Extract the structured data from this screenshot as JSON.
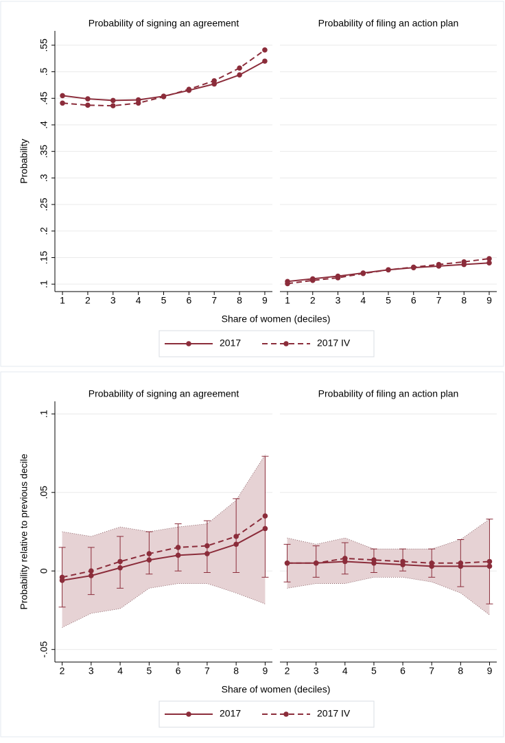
{
  "chart_data": [
    {
      "type": "line",
      "panels": [
        {
          "title": "Probability of signing an agreement"
        },
        {
          "title": "Probability of filing an action plan"
        }
      ],
      "ylabel": "Probability",
      "xlabel": "Share of women (deciles)",
      "x": [
        1,
        2,
        3,
        4,
        5,
        6,
        7,
        8,
        9
      ],
      "xlim": [
        0.7,
        9.3
      ],
      "xticks": [
        1,
        2,
        3,
        4,
        5,
        6,
        7,
        8,
        9
      ],
      "ylim": [
        0.086,
        0.577
      ],
      "yticks": [
        {
          "value": 0.1,
          "label": ".1"
        },
        {
          "value": 0.15,
          "label": ".15"
        },
        {
          "value": 0.2,
          "label": ".2"
        },
        {
          "value": 0.25,
          "label": ".25"
        },
        {
          "value": 0.3,
          "label": ".3"
        },
        {
          "value": 0.35,
          "label": ".35"
        },
        {
          "value": 0.4,
          "label": ".4"
        },
        {
          "value": 0.45,
          "label": ".45"
        },
        {
          "value": 0.5,
          "label": ".5"
        },
        {
          "value": 0.55,
          "label": ".55"
        }
      ],
      "grid": true,
      "series": [
        {
          "name": "2017",
          "color": "#8b2c3a",
          "dash": false,
          "values": [
            [
              0.455,
              0.449,
              0.446,
              0.447,
              0.454,
              0.465,
              0.477,
              0.494,
              0.52
            ],
            [
              0.105,
              0.11,
              0.115,
              0.121,
              0.127,
              0.131,
              0.134,
              0.137,
              0.14
            ]
          ]
        },
        {
          "name": "2017 IV",
          "color": "#8b2c3a",
          "dash": true,
          "values": [
            [
              0.441,
              0.437,
              0.436,
              0.441,
              0.453,
              0.467,
              0.483,
              0.507,
              0.541
            ],
            [
              0.101,
              0.107,
              0.112,
              0.12,
              0.127,
              0.132,
              0.137,
              0.142,
              0.148
            ]
          ]
        }
      ]
    },
    {
      "type": "line",
      "panels": [
        {
          "title": "Probability of signing an agreement"
        },
        {
          "title": "Probability of filing an action plan"
        }
      ],
      "ylabel": "Probability relative to previous decile",
      "xlabel": "Share of women (deciles)",
      "x": [
        2,
        3,
        4,
        5,
        6,
        7,
        8,
        9
      ],
      "xlim": [
        1.75,
        9.25
      ],
      "xticks": [
        2,
        3,
        4,
        5,
        6,
        7,
        8,
        9
      ],
      "ylim": [
        -0.058,
        0.108
      ],
      "yticks": [
        {
          "value": -0.05,
          "label": "-.05"
        },
        0,
        {
          "value": 0.05,
          "label": ".05"
        },
        {
          "value": 0.1,
          "label": ".1"
        }
      ],
      "grid": true,
      "band_color": "#e6d2d4",
      "series": [
        {
          "name": "2017",
          "color": "#8b2c3a",
          "dash": false,
          "values": [
            [
              -0.006,
              -0.003,
              0.002,
              0.007,
              0.01,
              0.011,
              0.017,
              0.027
            ],
            [
              0.005,
              0.005,
              0.006,
              0.005,
              0.004,
              0.003,
              0.003,
              0.003
            ]
          ],
          "band_lower": [
            [
              -0.036,
              -0.027,
              -0.024,
              -0.011,
              -0.008,
              -0.008,
              -0.014,
              -0.021
            ],
            [
              -0.011,
              -0.008,
              -0.008,
              -0.004,
              -0.004,
              -0.007,
              -0.014,
              -0.028
            ]
          ],
          "band_upper": [
            [
              0.025,
              0.022,
              0.028,
              0.025,
              0.028,
              0.03,
              0.045,
              0.074
            ],
            [
              0.021,
              0.017,
              0.021,
              0.014,
              0.014,
              0.014,
              0.02,
              0.033
            ]
          ]
        },
        {
          "name": "2017 IV",
          "color": "#8b2c3a",
          "dash": true,
          "values": [
            [
              -0.004,
              0.0,
              0.006,
              0.011,
              0.015,
              0.016,
              0.022,
              0.035
            ],
            [
              0.005,
              0.005,
              0.008,
              0.007,
              0.006,
              0.005,
              0.005,
              0.006
            ]
          ],
          "err_lower": [
            [
              -0.023,
              -0.015,
              -0.011,
              -0.002,
              0.0,
              -0.001,
              -0.001,
              -0.004
            ],
            [
              -0.007,
              -0.004,
              -0.002,
              -0.001,
              0.0,
              -0.004,
              -0.01,
              -0.021
            ]
          ],
          "err_upper": [
            [
              0.015,
              0.015,
              0.022,
              0.025,
              0.03,
              0.032,
              0.046,
              0.073
            ],
            [
              0.017,
              0.016,
              0.018,
              0.014,
              0.014,
              0.014,
              0.02,
              0.033
            ]
          ]
        }
      ]
    }
  ]
}
